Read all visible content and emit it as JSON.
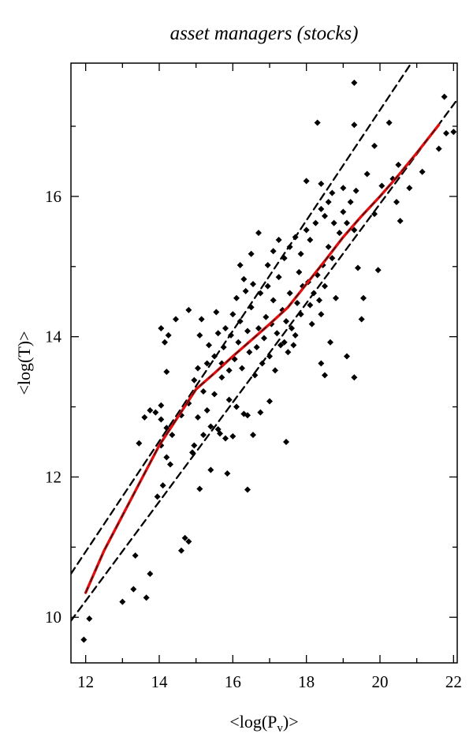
{
  "chart_data": {
    "type": "scatter",
    "title": "asset managers (stocks)",
    "xlabel": "<log(P_v)>",
    "ylabel": "<log(T)>",
    "xlim": [
      11.6,
      22.1
    ],
    "ylim": [
      9.35,
      17.9
    ],
    "xticks": [
      12,
      14,
      16,
      18,
      20,
      22
    ],
    "yticks": [
      10,
      12,
      14,
      16
    ],
    "grid": false,
    "series": [
      {
        "type": "scatter",
        "marker": "diamond",
        "color": "#000000",
        "points": [
          [
            11.95,
            9.68
          ],
          [
            12.1,
            9.98
          ],
          [
            13.0,
            10.22
          ],
          [
            13.3,
            10.4
          ],
          [
            13.65,
            10.28
          ],
          [
            13.75,
            10.62
          ],
          [
            13.35,
            10.88
          ],
          [
            14.6,
            10.95
          ],
          [
            14.7,
            11.13
          ],
          [
            14.8,
            11.08
          ],
          [
            13.95,
            11.72
          ],
          [
            14.1,
            11.88
          ],
          [
            15.1,
            11.83
          ],
          [
            15.4,
            12.1
          ],
          [
            15.85,
            12.05
          ],
          [
            16.4,
            11.82
          ],
          [
            13.45,
            12.48
          ],
          [
            14.05,
            12.45
          ],
          [
            14.2,
            12.28
          ],
          [
            14.3,
            12.18
          ],
          [
            14.9,
            12.35
          ],
          [
            14.95,
            12.45
          ],
          [
            15.2,
            12.6
          ],
          [
            15.6,
            12.68
          ],
          [
            16.0,
            12.58
          ],
          [
            13.6,
            12.85
          ],
          [
            13.75,
            12.95
          ],
          [
            13.9,
            12.92
          ],
          [
            14.05,
            12.82
          ],
          [
            14.2,
            12.7
          ],
          [
            14.35,
            12.6
          ],
          [
            14.6,
            12.88
          ],
          [
            14.8,
            13.05
          ],
          [
            15.05,
            12.85
          ],
          [
            15.3,
            12.95
          ],
          [
            15.4,
            12.72
          ],
          [
            15.65,
            12.62
          ],
          [
            15.8,
            12.55
          ],
          [
            14.05,
            13.02
          ],
          [
            14.2,
            13.5
          ],
          [
            14.95,
            13.38
          ],
          [
            15.05,
            13.55
          ],
          [
            15.2,
            13.22
          ],
          [
            15.3,
            13.62
          ],
          [
            15.5,
            13.18
          ],
          [
            15.7,
            13.42
          ],
          [
            15.9,
            13.1
          ],
          [
            16.1,
            13.0
          ],
          [
            16.3,
            12.9
          ],
          [
            16.4,
            12.88
          ],
          [
            16.55,
            12.6
          ],
          [
            16.75,
            12.92
          ],
          [
            17.0,
            13.08
          ],
          [
            14.05,
            14.12
          ],
          [
            14.15,
            13.92
          ],
          [
            14.25,
            14.02
          ],
          [
            14.45,
            14.25
          ],
          [
            14.8,
            14.38
          ],
          [
            15.1,
            14.02
          ],
          [
            15.15,
            14.25
          ],
          [
            15.35,
            13.88
          ],
          [
            15.5,
            13.72
          ],
          [
            15.55,
            14.35
          ],
          [
            15.6,
            14.05
          ],
          [
            15.7,
            13.62
          ],
          [
            15.75,
            13.85
          ],
          [
            15.8,
            14.12
          ],
          [
            15.9,
            13.52
          ],
          [
            15.95,
            14.02
          ],
          [
            16.0,
            14.32
          ],
          [
            16.05,
            13.68
          ],
          [
            16.1,
            14.55
          ],
          [
            16.15,
            13.92
          ],
          [
            16.2,
            14.22
          ],
          [
            16.25,
            13.55
          ],
          [
            16.3,
            14.82
          ],
          [
            16.35,
            14.65
          ],
          [
            16.4,
            14.08
          ],
          [
            16.45,
            13.78
          ],
          [
            16.5,
            14.42
          ],
          [
            16.55,
            14.75
          ],
          [
            16.6,
            13.45
          ],
          [
            16.65,
            13.85
          ],
          [
            16.7,
            14.12
          ],
          [
            16.75,
            14.62
          ],
          [
            16.8,
            13.62
          ],
          [
            16.85,
            13.98
          ],
          [
            16.9,
            14.28
          ],
          [
            16.95,
            14.72
          ],
          [
            17.0,
            13.72
          ],
          [
            17.05,
            14.18
          ],
          [
            17.1,
            14.52
          ],
          [
            17.15,
            13.52
          ],
          [
            17.2,
            14.05
          ],
          [
            17.25,
            14.85
          ],
          [
            17.3,
            13.88
          ],
          [
            17.35,
            14.38
          ],
          [
            17.4,
            13.92
          ],
          [
            17.45,
            14.22
          ],
          [
            17.5,
            13.78
          ],
          [
            17.55,
            14.62
          ],
          [
            17.6,
            14.12
          ],
          [
            17.65,
            13.88
          ],
          [
            17.7,
            14.02
          ],
          [
            17.75,
            14.48
          ],
          [
            17.8,
            14.92
          ],
          [
            17.85,
            14.32
          ],
          [
            17.9,
            14.72
          ],
          [
            16.2,
            15.02
          ],
          [
            16.5,
            15.18
          ],
          [
            16.7,
            15.48
          ],
          [
            16.95,
            15.02
          ],
          [
            17.1,
            15.22
          ],
          [
            17.25,
            15.38
          ],
          [
            17.4,
            15.12
          ],
          [
            17.55,
            15.28
          ],
          [
            17.7,
            15.42
          ],
          [
            17.85,
            15.18
          ],
          [
            18.0,
            15.52
          ],
          [
            18.1,
            15.38
          ],
          [
            18.05,
            14.78
          ],
          [
            18.1,
            14.45
          ],
          [
            18.15,
            14.18
          ],
          [
            18.2,
            14.62
          ],
          [
            18.3,
            14.88
          ],
          [
            18.35,
            14.52
          ],
          [
            18.4,
            14.32
          ],
          [
            18.45,
            15.02
          ],
          [
            18.5,
            14.72
          ],
          [
            18.6,
            15.28
          ],
          [
            18.7,
            15.12
          ],
          [
            18.8,
            14.55
          ],
          [
            18.4,
            13.62
          ],
          [
            18.5,
            13.45
          ],
          [
            18.65,
            13.92
          ],
          [
            19.1,
            13.72
          ],
          [
            19.3,
            13.42
          ],
          [
            17.45,
            12.5
          ],
          [
            18.25,
            15.62
          ],
          [
            18.4,
            15.82
          ],
          [
            18.5,
            15.72
          ],
          [
            18.6,
            15.92
          ],
          [
            18.75,
            15.62
          ],
          [
            18.9,
            15.48
          ],
          [
            19.0,
            15.78
          ],
          [
            19.1,
            15.62
          ],
          [
            19.2,
            15.92
          ],
          [
            19.3,
            15.52
          ],
          [
            19.4,
            14.98
          ],
          [
            19.5,
            14.25
          ],
          [
            18.0,
            16.22
          ],
          [
            18.4,
            16.18
          ],
          [
            18.7,
            16.05
          ],
          [
            19.0,
            16.12
          ],
          [
            19.35,
            16.08
          ],
          [
            19.65,
            16.32
          ],
          [
            19.85,
            15.75
          ],
          [
            19.95,
            14.95
          ],
          [
            19.55,
            14.55
          ],
          [
            19.3,
            17.62
          ],
          [
            19.3,
            17.02
          ],
          [
            19.85,
            16.72
          ],
          [
            20.25,
            17.05
          ],
          [
            20.05,
            16.15
          ],
          [
            20.35,
            16.25
          ],
          [
            20.5,
            16.45
          ],
          [
            20.55,
            15.65
          ],
          [
            20.8,
            16.12
          ],
          [
            20.45,
            15.92
          ],
          [
            18.3,
            17.05
          ],
          [
            21.15,
            16.35
          ],
          [
            21.6,
            16.68
          ],
          [
            21.75,
            17.42
          ],
          [
            21.8,
            16.9
          ],
          [
            22.0,
            16.92
          ]
        ]
      },
      {
        "type": "line",
        "style": "dashed",
        "color": "#000000",
        "points": [
          [
            11.6,
            10.62
          ],
          [
            20.85,
            17.9
          ]
        ]
      },
      {
        "type": "line",
        "style": "dashed",
        "color": "#000000",
        "points": [
          [
            11.6,
            9.95
          ],
          [
            22.1,
            17.38
          ]
        ]
      },
      {
        "type": "line",
        "style": "solid",
        "color": "#e01010",
        "points": [
          [
            12.0,
            10.35
          ],
          [
            12.5,
            10.95
          ],
          [
            13.0,
            11.45
          ],
          [
            13.5,
            11.95
          ],
          [
            14.0,
            12.45
          ],
          [
            14.5,
            12.85
          ],
          [
            15.0,
            13.25
          ],
          [
            15.5,
            13.48
          ],
          [
            16.0,
            13.72
          ],
          [
            16.5,
            13.95
          ],
          [
            17.0,
            14.18
          ],
          [
            17.5,
            14.42
          ],
          [
            18.0,
            14.75
          ],
          [
            18.5,
            15.08
          ],
          [
            19.0,
            15.42
          ],
          [
            19.5,
            15.72
          ],
          [
            20.0,
            16.0
          ],
          [
            20.5,
            16.3
          ],
          [
            21.0,
            16.62
          ],
          [
            21.6,
            17.02
          ]
        ]
      }
    ]
  }
}
